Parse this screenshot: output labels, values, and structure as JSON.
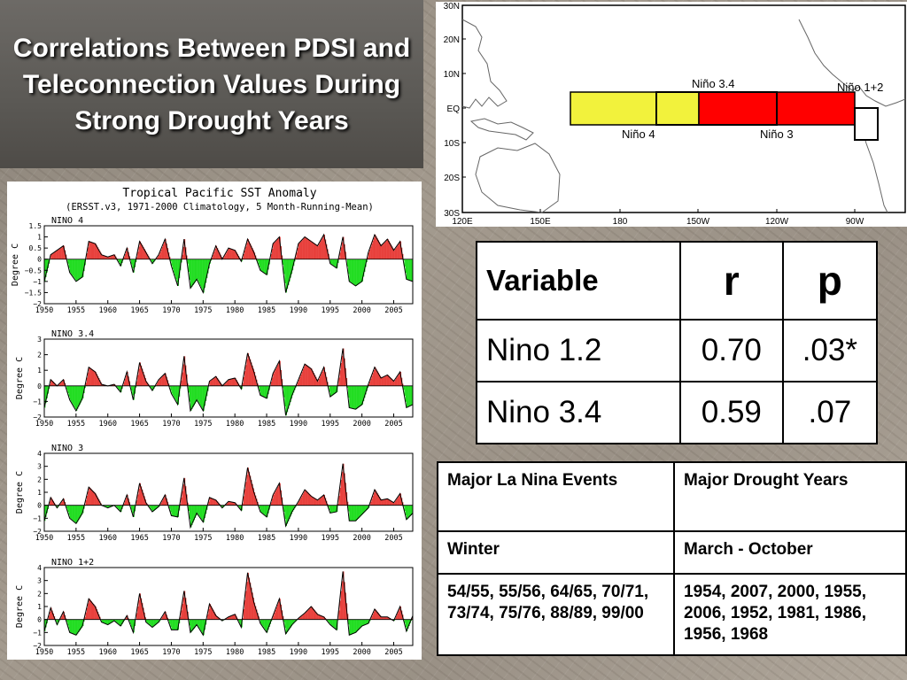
{
  "slide_title": "Correlations Between PDSI and Teleconnection Values During Strong Drought Years",
  "map": {
    "lat_labels": [
      "30N",
      "20N",
      "10N",
      "EQ",
      "10S",
      "20S",
      "30S"
    ],
    "lon_labels": [
      "120E",
      "150E",
      "180",
      "150W",
      "120W",
      "90W"
    ],
    "region_labels": {
      "nino4": "Niño 4",
      "nino34": "Niño 3.4",
      "nino3": "Niño 3",
      "nino12": "Niño 1+2"
    },
    "colors": {
      "nino4": "#f2f23c",
      "nino3": "#ff0000",
      "nino12": "#ffffff"
    }
  },
  "sst": {
    "title": "Tropical Pacific SST Anomaly",
    "subtitle": "(ERSST.v3, 1971-2000 Climatology, 5 Month-Running-Mean)",
    "ylabel": "Degree C",
    "x_ticks": [
      "1950",
      "1955",
      "1960",
      "1965",
      "1970",
      "1975",
      "1980",
      "1985",
      "1990",
      "1995",
      "2000",
      "2005"
    ],
    "panels": [
      {
        "name": "NINO 4",
        "ylim": [
          -2,
          1.5
        ],
        "yticks": [
          "1.5",
          "1",
          "0.5",
          "0",
          "−0.5",
          "−1",
          "−1.5",
          "−2"
        ]
      },
      {
        "name": "NINO 3.4",
        "ylim": [
          -2,
          3
        ],
        "yticks": [
          "3",
          "2",
          "1",
          "0",
          "−1",
          "−2"
        ]
      },
      {
        "name": "NINO 3",
        "ylim": [
          -2,
          4
        ],
        "yticks": [
          "4",
          "3",
          "2",
          "1",
          "0",
          "−1",
          "−2"
        ]
      },
      {
        "name": "NINO 1+2",
        "ylim": [
          -2,
          4
        ],
        "yticks": [
          "4",
          "3",
          "2",
          "1",
          "0",
          "−1",
          "−2"
        ]
      }
    ],
    "colors": {
      "positive": "#e8403c",
      "negative": "#22dd22"
    }
  },
  "chart_data": {
    "type": "area",
    "title": "Tropical Pacific SST Anomaly",
    "subtitle": "(ERSST.v3, 1971-2000 Climatology, 5 Month-Running-Mean)",
    "ylabel": "Degree C",
    "xlim": [
      1950,
      2008
    ],
    "x": [
      1950,
      1951,
      1952,
      1953,
      1954,
      1955,
      1956,
      1957,
      1958,
      1959,
      1960,
      1961,
      1962,
      1963,
      1964,
      1965,
      1966,
      1967,
      1968,
      1969,
      1970,
      1971,
      1972,
      1973,
      1974,
      1975,
      1976,
      1977,
      1978,
      1979,
      1980,
      1981,
      1982,
      1983,
      1984,
      1985,
      1986,
      1987,
      1988,
      1989,
      1990,
      1991,
      1992,
      1993,
      1994,
      1995,
      1996,
      1997,
      1998,
      1999,
      2000,
      2001,
      2002,
      2003,
      2004,
      2005,
      2006,
      2007,
      2008
    ],
    "series": [
      {
        "name": "NINO 4",
        "values": [
          -1.0,
          0.2,
          0.4,
          0.6,
          -0.6,
          -1.0,
          -0.8,
          0.8,
          0.7,
          0.2,
          0.1,
          0.2,
          -0.3,
          0.5,
          -0.6,
          0.8,
          0.3,
          -0.2,
          0.2,
          0.9,
          -0.3,
          -1.2,
          0.9,
          -1.3,
          -0.9,
          -1.5,
          -0.2,
          0.6,
          0.0,
          0.5,
          0.4,
          -0.1,
          0.9,
          0.3,
          -0.5,
          -0.7,
          0.7,
          1.0,
          -1.5,
          -0.5,
          0.7,
          1.0,
          0.8,
          0.6,
          1.1,
          -0.2,
          -0.4,
          1.0,
          -1.0,
          -1.2,
          -1.0,
          0.3,
          1.1,
          0.6,
          0.9,
          0.4,
          0.8,
          -0.9,
          -1.0
        ]
      },
      {
        "name": "NINO 3.4",
        "values": [
          -1.4,
          0.4,
          0.0,
          0.4,
          -0.9,
          -1.6,
          -0.8,
          1.2,
          0.9,
          0.1,
          0.0,
          0.1,
          -0.4,
          0.9,
          -0.9,
          1.5,
          0.3,
          -0.3,
          0.4,
          0.8,
          -0.5,
          -1.2,
          1.9,
          -1.6,
          -0.9,
          -1.6,
          0.3,
          0.6,
          0.0,
          0.4,
          0.5,
          -0.2,
          2.1,
          0.9,
          -0.6,
          -0.8,
          0.8,
          1.6,
          -1.9,
          -0.6,
          0.4,
          1.4,
          1.1,
          0.3,
          1.2,
          -0.7,
          -0.4,
          2.4,
          -1.4,
          -1.5,
          -1.2,
          0.1,
          1.2,
          0.5,
          0.7,
          0.3,
          0.9,
          -1.4,
          -1.2
        ]
      },
      {
        "name": "NINO 3",
        "values": [
          -1.2,
          0.6,
          -0.2,
          0.5,
          -1.0,
          -1.4,
          -0.6,
          1.4,
          0.9,
          0.0,
          -0.2,
          0.0,
          -0.5,
          0.8,
          -0.9,
          1.7,
          0.2,
          -0.5,
          -0.1,
          0.8,
          -0.8,
          -0.9,
          2.1,
          -1.7,
          -0.6,
          -1.3,
          0.6,
          0.4,
          -0.2,
          0.3,
          0.2,
          -0.4,
          2.9,
          1.0,
          -0.5,
          -0.9,
          0.8,
          1.7,
          -1.6,
          -0.5,
          0.3,
          1.2,
          0.7,
          0.4,
          0.8,
          -0.6,
          -0.5,
          3.2,
          -1.2,
          -1.2,
          -0.7,
          -0.2,
          1.2,
          0.4,
          0.5,
          0.2,
          0.9,
          -1.1,
          -0.6
        ]
      },
      {
        "name": "NINO 1+2",
        "values": [
          -0.9,
          0.9,
          -0.4,
          0.6,
          -1.0,
          -1.2,
          -0.5,
          1.6,
          1.0,
          -0.2,
          -0.4,
          -0.1,
          -0.5,
          0.3,
          -1.0,
          2.0,
          -0.2,
          -0.6,
          -0.2,
          0.6,
          -0.8,
          -0.8,
          2.2,
          -1.0,
          -0.4,
          -1.2,
          1.2,
          0.3,
          -0.1,
          0.2,
          0.4,
          -0.6,
          3.6,
          1.3,
          -0.3,
          -1.0,
          0.3,
          1.6,
          -1.1,
          -0.4,
          0.1,
          0.5,
          1.0,
          0.4,
          0.2,
          -0.4,
          -0.8,
          3.7,
          -1.2,
          -1.0,
          -0.5,
          -0.3,
          0.8,
          0.2,
          0.2,
          -0.1,
          1.0,
          -0.9,
          0.3
        ]
      }
    ]
  },
  "correlation_table": {
    "headers": [
      "Variable",
      "r",
      "p"
    ],
    "rows": [
      [
        "Nino 1.2",
        "0.70",
        ".03*"
      ],
      [
        "Nino 3.4",
        "0.59",
        ".07"
      ]
    ]
  },
  "events_table": {
    "headers": [
      "Major La Nina Events",
      "Major Drought Years"
    ],
    "season_row": [
      "Winter",
      "March - October"
    ],
    "data_row": [
      "54/55, 55/56, 64/65, 70/71, 73/74, 75/76, 88/89, 99/00",
      "1954, 2007, 2000, 1955, 2006, 1952, 1981, 1986, 1956, 1968"
    ]
  }
}
